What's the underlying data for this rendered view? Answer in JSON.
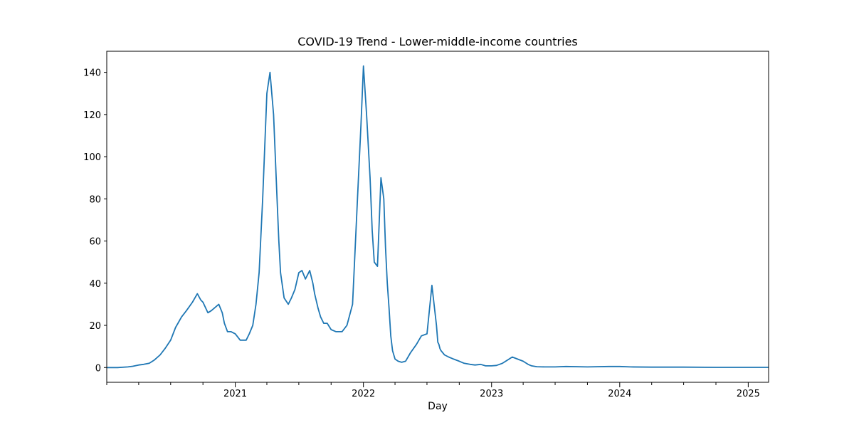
{
  "chart_data": {
    "type": "line",
    "title": "COVID-19 Trend - Lower-middle-income countries",
    "xlabel": "Day",
    "ylabel": "",
    "x_axis_type": "date",
    "xlim": [
      "2020-01-01",
      "2025-02-28"
    ],
    "ylim": [
      -7,
      150
    ],
    "x_tick_labels": [
      "2021",
      "2022",
      "2023",
      "2024",
      "2025"
    ],
    "x_ticks": [
      "2021-01-01",
      "2022-01-01",
      "2023-01-01",
      "2024-01-01",
      "2025-01-01"
    ],
    "x_minor_ticks": [
      "2020-01-01",
      "2020-04-01",
      "2020-07-01",
      "2020-10-01",
      "2021-04-01",
      "2021-07-01",
      "2021-10-01",
      "2022-04-01",
      "2022-07-01",
      "2022-10-01",
      "2023-04-01",
      "2023-07-01",
      "2023-10-01",
      "2024-04-01",
      "2024-07-01",
      "2024-10-01"
    ],
    "y_ticks": [
      0,
      20,
      40,
      60,
      80,
      100,
      120,
      140
    ],
    "grid": false,
    "legend": "none",
    "series_color": "#1f77b4",
    "series": [
      {
        "x": [
          "2020-01-01",
          "2020-02-01",
          "2020-03-01",
          "2020-03-15",
          "2020-04-01",
          "2020-04-15",
          "2020-05-01",
          "2020-05-15",
          "2020-06-01",
          "2020-06-15",
          "2020-07-01",
          "2020-07-15",
          "2020-08-01",
          "2020-08-15",
          "2020-09-01",
          "2020-09-15",
          "2020-09-25",
          "2020-10-01",
          "2020-10-15",
          "2020-10-25",
          "2020-11-01",
          "2020-11-15",
          "2020-11-25",
          "2020-12-01",
          "2020-12-10",
          "2020-12-20",
          "2021-01-01",
          "2021-01-15",
          "2021-02-01",
          "2021-02-10",
          "2021-02-20",
          "2021-03-01",
          "2021-03-10",
          "2021-03-20",
          "2021-04-01",
          "2021-04-10",
          "2021-04-20",
          "2021-04-30",
          "2021-05-05",
          "2021-05-10",
          "2021-05-20",
          "2021-06-01",
          "2021-06-10",
          "2021-06-20",
          "2021-07-01",
          "2021-07-10",
          "2021-07-20",
          "2021-08-01",
          "2021-08-10",
          "2021-08-15",
          "2021-08-25",
          "2021-09-01",
          "2021-09-10",
          "2021-09-20",
          "2021-10-01",
          "2021-10-15",
          "2021-11-01",
          "2021-11-15",
          "2021-12-01",
          "2021-12-15",
          "2021-12-25",
          "2022-01-01",
          "2022-01-10",
          "2022-01-20",
          "2022-01-26",
          "2022-02-01",
          "2022-02-10",
          "2022-02-20",
          "2022-02-28",
          "2022-03-05",
          "2022-03-10",
          "2022-03-15",
          "2022-03-20",
          "2022-03-25",
          "2022-04-01",
          "2022-04-10",
          "2022-04-20",
          "2022-05-01",
          "2022-05-15",
          "2022-06-01",
          "2022-06-15",
          "2022-07-01",
          "2022-07-15",
          "2022-07-28",
          "2022-08-01",
          "2022-08-04",
          "2022-08-07",
          "2022-08-10",
          "2022-08-20",
          "2022-09-01",
          "2022-09-15",
          "2022-10-01",
          "2022-10-15",
          "2022-11-01",
          "2022-11-15",
          "2022-12-01",
          "2022-12-15",
          "2023-01-01",
          "2023-01-15",
          "2023-02-01",
          "2023-03-01",
          "2023-04-01",
          "2023-04-15",
          "2023-04-25",
          "2023-05-10",
          "2023-06-01",
          "2023-07-01",
          "2023-08-01",
          "2023-10-01",
          "2023-12-01",
          "2024-01-01",
          "2024-02-01",
          "2024-04-01",
          "2024-07-01",
          "2024-10-01",
          "2025-01-01",
          "2025-02-28"
        ],
        "y": [
          0,
          0,
          0.3,
          0.6,
          1.2,
          1.5,
          2,
          3.5,
          6,
          9,
          13,
          19,
          24,
          27,
          31,
          35,
          32,
          31,
          26,
          27,
          28,
          30,
          26,
          21,
          17,
          17,
          16,
          13,
          13,
          16,
          20,
          30,
          45,
          80,
          130,
          140,
          120,
          80,
          60,
          45,
          33,
          30,
          33,
          37,
          45,
          46,
          42,
          46,
          40,
          35,
          28,
          24,
          21,
          21,
          18,
          17,
          17,
          20,
          30,
          80,
          115,
          143,
          120,
          90,
          65,
          50,
          48,
          90,
          80,
          57,
          40,
          28,
          15,
          8,
          4,
          3,
          2.5,
          3,
          7,
          11,
          15,
          16,
          39,
          20,
          12,
          11,
          9,
          8,
          6,
          5,
          4,
          3,
          2,
          1.5,
          1.2,
          1.5,
          0.8,
          0.8,
          1,
          2,
          5,
          3,
          1.5,
          0.8,
          0.4,
          0.3,
          0.3,
          0.5,
          0.3,
          0.5,
          0.5,
          0.3,
          0.2,
          0.2,
          0.1,
          0.1,
          0.1
        ]
      }
    ]
  }
}
